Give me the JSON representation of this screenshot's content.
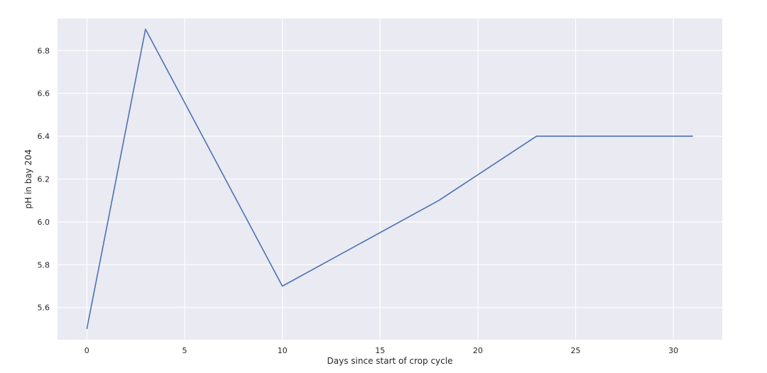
{
  "chart_data": {
    "type": "line",
    "title": "",
    "xlabel": "Days since start of crop cycle",
    "ylabel": "pH in bay 204",
    "xlim": [
      -1.5,
      32.5
    ],
    "ylim": [
      5.45,
      6.95
    ],
    "x_ticks": [
      0,
      5,
      10,
      15,
      20,
      25,
      30
    ],
    "x_tick_labels": [
      "0",
      "5",
      "10",
      "15",
      "20",
      "25",
      "30"
    ],
    "y_ticks": [
      5.6,
      5.8,
      6.0,
      6.2,
      6.4,
      6.6,
      6.8
    ],
    "y_tick_labels": [
      "5.6",
      "5.8",
      "6.0",
      "6.2",
      "6.4",
      "6.6",
      "6.8"
    ],
    "grid": true,
    "background_color": "#eaeaf2",
    "grid_color": "#ffffff",
    "series": [
      {
        "x": [
          0,
          3,
          10,
          18,
          23,
          31
        ],
        "y": [
          5.5,
          6.9,
          5.7,
          6.1,
          6.4,
          6.4
        ],
        "color": "#4c72b0"
      }
    ]
  }
}
